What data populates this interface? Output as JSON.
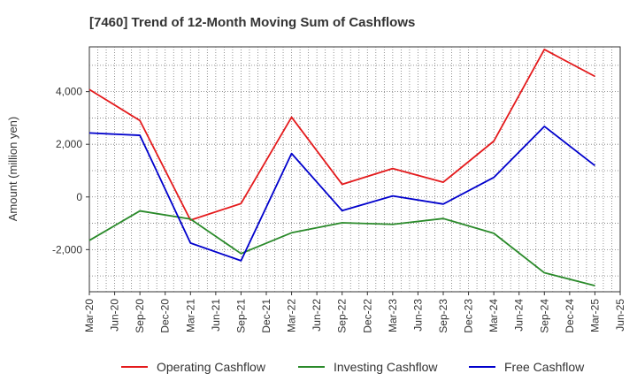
{
  "chart_data": {
    "type": "line",
    "title": "[7460]  Trend of 12-Month Moving Sum of Cashflows",
    "xlabel": "",
    "ylabel": "Amount (million yen)",
    "x": [
      "Mar-20",
      "Jun-20",
      "Sep-20",
      "Dec-20",
      "Mar-21",
      "Jun-21",
      "Sep-21",
      "Dec-21",
      "Mar-22",
      "Jun-22",
      "Sep-22",
      "Dec-22",
      "Mar-23",
      "Jun-23",
      "Sep-23",
      "Dec-23",
      "Mar-24",
      "Jun-24",
      "Sep-24",
      "Dec-24",
      "Mar-25",
      "Jun-25"
    ],
    "ylim": [
      -3600,
      5700
    ],
    "yticks": [
      {
        "value": -2000,
        "label": "-2,000"
      },
      {
        "value": 0,
        "label": "0"
      },
      {
        "value": 2000,
        "label": "2,000"
      },
      {
        "value": 4000,
        "label": "4,000"
      }
    ],
    "grid": true,
    "legend_position": "bottom",
    "series": [
      {
        "name": "Operating Cashflow",
        "color": "#e41a1c",
        "points": [
          [
            "Mar-20",
            4080
          ],
          [
            "Sep-20",
            2900
          ],
          [
            "Mar-21",
            -880
          ],
          [
            "Sep-21",
            -250
          ],
          [
            "Mar-22",
            3030
          ],
          [
            "Sep-22",
            480
          ],
          [
            "Mar-23",
            1080
          ],
          [
            "Sep-23",
            560
          ],
          [
            "Mar-24",
            2120
          ],
          [
            "Sep-24",
            5600
          ],
          [
            "Mar-25",
            4580
          ]
        ]
      },
      {
        "name": "Investing Cashflow",
        "color": "#2a8a2a",
        "points": [
          [
            "Mar-20",
            -1650
          ],
          [
            "Sep-20",
            -530
          ],
          [
            "Mar-21",
            -840
          ],
          [
            "Sep-21",
            -2150
          ],
          [
            "Mar-22",
            -1360
          ],
          [
            "Sep-22",
            -980
          ],
          [
            "Mar-23",
            -1040
          ],
          [
            "Sep-23",
            -820
          ],
          [
            "Mar-24",
            -1380
          ],
          [
            "Sep-24",
            -2880
          ],
          [
            "Mar-25",
            -3370
          ]
        ]
      },
      {
        "name": "Free Cashflow",
        "color": "#0000cc",
        "points": [
          [
            "Mar-20",
            2430
          ],
          [
            "Sep-20",
            2340
          ],
          [
            "Mar-21",
            -1750
          ],
          [
            "Sep-21",
            -2420
          ],
          [
            "Mar-22",
            1650
          ],
          [
            "Sep-22",
            -520
          ],
          [
            "Mar-23",
            40
          ],
          [
            "Sep-23",
            -270
          ],
          [
            "Mar-24",
            740
          ],
          [
            "Sep-24",
            2680
          ],
          [
            "Mar-25",
            1190
          ]
        ]
      }
    ]
  }
}
